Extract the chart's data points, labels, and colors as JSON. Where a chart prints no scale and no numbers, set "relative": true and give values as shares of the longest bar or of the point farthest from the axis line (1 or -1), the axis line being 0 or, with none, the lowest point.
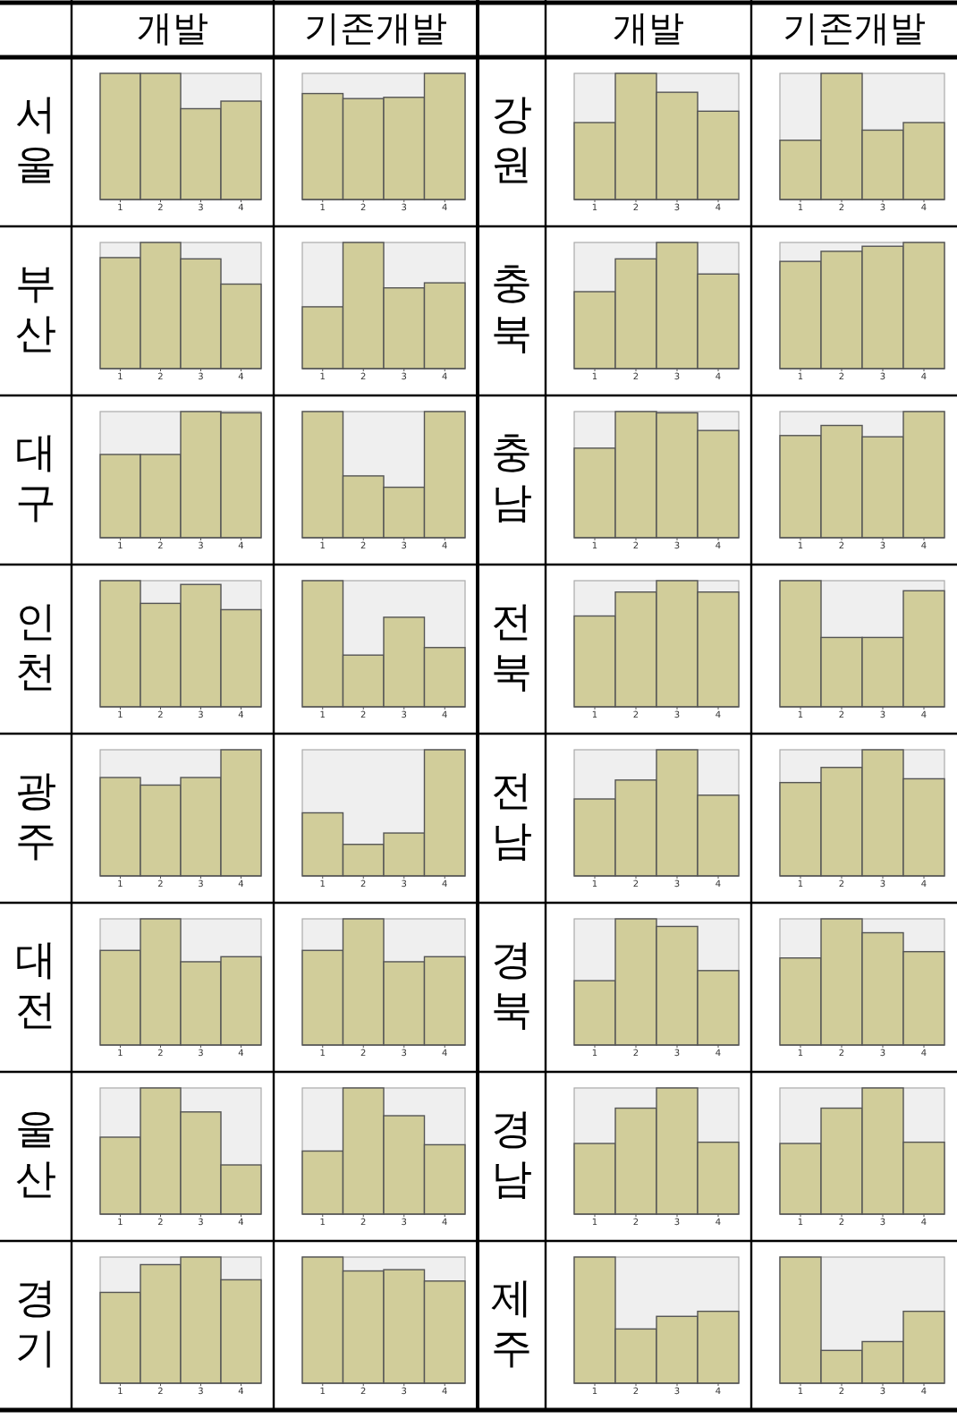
{
  "chart_data": [
    {
      "type": "other",
      "annotations": [
        "개발",
        "기존개발",
        "개발",
        "기존개발",
        "서울",
        "강원",
        "부산",
        "충북",
        "대구",
        "충남",
        "인천",
        "전북",
        "광주",
        "전남",
        "대전",
        "경북",
        "울산",
        "경남",
        "경기",
        "제주"
      ]
    },
    {
      "type": "bar",
      "relative": true,
      "categories": [
        "1",
        "2",
        "3",
        "4"
      ],
      "values": [
        1,
        1,
        0.72,
        0.78
      ],
      "color": "#d1cd9a"
    },
    {
      "type": "bar",
      "relative": true,
      "categories": [
        "1",
        "2",
        "3",
        "4"
      ],
      "values": [
        0.84,
        0.8,
        0.81,
        1
      ],
      "color": "#d1cd9a"
    },
    {
      "type": "bar",
      "relative": true,
      "categories": [
        "1",
        "2",
        "3",
        "4"
      ],
      "values": [
        0.61,
        1,
        0.85,
        0.7
      ],
      "color": "#d1cd9a"
    },
    {
      "type": "bar",
      "relative": true,
      "categories": [
        "1",
        "2",
        "3",
        "4"
      ],
      "values": [
        0.47,
        1,
        0.55,
        0.61
      ],
      "color": "#d1cd9a"
    },
    {
      "type": "bar",
      "relative": true,
      "categories": [
        "1",
        "2",
        "3",
        "4"
      ],
      "values": [
        0.88,
        1,
        0.87,
        0.67
      ],
      "color": "#d1cd9a"
    },
    {
      "type": "bar",
      "relative": true,
      "categories": [
        "1",
        "2",
        "3",
        "4"
      ],
      "values": [
        0.49,
        1,
        0.64,
        0.68
      ],
      "color": "#d1cd9a"
    },
    {
      "type": "bar",
      "relative": true,
      "categories": [
        "1",
        "2",
        "3",
        "4"
      ],
      "values": [
        0.61,
        0.87,
        1,
        0.75
      ],
      "color": "#d1cd9a"
    },
    {
      "type": "bar",
      "relative": true,
      "categories": [
        "1",
        "2",
        "3",
        "4"
      ],
      "values": [
        0.85,
        0.93,
        0.97,
        1
      ],
      "color": "#d1cd9a"
    },
    {
      "type": "bar",
      "relative": true,
      "categories": [
        "1",
        "2",
        "3",
        "4"
      ],
      "values": [
        0.66,
        0.66,
        1,
        0.99
      ],
      "color": "#d1cd9a"
    },
    {
      "type": "bar",
      "relative": true,
      "categories": [
        "1",
        "2",
        "3",
        "4"
      ],
      "values": [
        1,
        0.49,
        0.4,
        1
      ],
      "color": "#d1cd9a"
    },
    {
      "type": "bar",
      "relative": true,
      "categories": [
        "1",
        "2",
        "3",
        "4"
      ],
      "values": [
        0.71,
        1,
        0.99,
        0.85
      ],
      "color": "#d1cd9a"
    },
    {
      "type": "bar",
      "relative": true,
      "categories": [
        "1",
        "2",
        "3",
        "4"
      ],
      "values": [
        0.81,
        0.89,
        0.8,
        1
      ],
      "color": "#d1cd9a"
    },
    {
      "type": "bar",
      "relative": true,
      "categories": [
        "1",
        "2",
        "3",
        "4"
      ],
      "values": [
        1,
        0.82,
        0.97,
        0.77
      ],
      "color": "#d1cd9a"
    },
    {
      "type": "bar",
      "relative": true,
      "categories": [
        "1",
        "2",
        "3",
        "4"
      ],
      "values": [
        1,
        0.41,
        0.71,
        0.47
      ],
      "color": "#d1cd9a"
    },
    {
      "type": "bar",
      "relative": true,
      "categories": [
        "1",
        "2",
        "3",
        "4"
      ],
      "values": [
        0.72,
        0.91,
        1,
        0.91
      ],
      "color": "#d1cd9a"
    },
    {
      "type": "bar",
      "relative": true,
      "categories": [
        "1",
        "2",
        "3",
        "4"
      ],
      "values": [
        1,
        0.55,
        0.55,
        0.92
      ],
      "color": "#d1cd9a"
    },
    {
      "type": "bar",
      "relative": true,
      "categories": [
        "1",
        "2",
        "3",
        "4"
      ],
      "values": [
        0.78,
        0.72,
        0.78,
        1
      ],
      "color": "#d1cd9a"
    },
    {
      "type": "bar",
      "relative": true,
      "categories": [
        "1",
        "2",
        "3",
        "4"
      ],
      "values": [
        0.5,
        0.25,
        0.34,
        1
      ],
      "color": "#d1cd9a"
    },
    {
      "type": "bar",
      "relative": true,
      "categories": [
        "1",
        "2",
        "3",
        "4"
      ],
      "values": [
        0.61,
        0.76,
        1,
        0.64
      ],
      "color": "#d1cd9a"
    },
    {
      "type": "bar",
      "relative": true,
      "categories": [
        "1",
        "2",
        "3",
        "4"
      ],
      "values": [
        0.74,
        0.86,
        1,
        0.77
      ],
      "color": "#d1cd9a"
    },
    {
      "type": "bar",
      "relative": true,
      "categories": [
        "1",
        "2",
        "3",
        "4"
      ],
      "values": [
        0.75,
        1,
        0.66,
        0.7
      ],
      "color": "#d1cd9a"
    },
    {
      "type": "bar",
      "relative": true,
      "categories": [
        "1",
        "2",
        "3",
        "4"
      ],
      "values": [
        0.75,
        1,
        0.66,
        0.7
      ],
      "color": "#d1cd9a"
    },
    {
      "type": "bar",
      "relative": true,
      "categories": [
        "1",
        "2",
        "3",
        "4"
      ],
      "values": [
        0.51,
        1,
        0.94,
        0.59
      ],
      "color": "#d1cd9a"
    },
    {
      "type": "bar",
      "relative": true,
      "categories": [
        "1",
        "2",
        "3",
        "4"
      ],
      "values": [
        0.69,
        1,
        0.89,
        0.74
      ],
      "color": "#d1cd9a"
    },
    {
      "type": "bar",
      "relative": true,
      "categories": [
        "1",
        "2",
        "3",
        "4"
      ],
      "values": [
        0.61,
        1,
        0.81,
        0.39
      ],
      "color": "#d1cd9a"
    },
    {
      "type": "bar",
      "relative": true,
      "categories": [
        "1",
        "2",
        "3",
        "4"
      ],
      "values": [
        0.5,
        1,
        0.78,
        0.55
      ],
      "color": "#d1cd9a"
    },
    {
      "type": "bar",
      "relative": true,
      "categories": [
        "1",
        "2",
        "3",
        "4"
      ],
      "values": [
        0.56,
        0.84,
        1,
        0.57
      ],
      "color": "#d1cd9a"
    },
    {
      "type": "bar",
      "relative": true,
      "categories": [
        "1",
        "2",
        "3",
        "4"
      ],
      "values": [
        0.56,
        0.84,
        1,
        0.57
      ],
      "color": "#d1cd9a"
    },
    {
      "type": "bar",
      "relative": true,
      "categories": [
        "1",
        "2",
        "3",
        "4"
      ],
      "values": [
        0.72,
        0.94,
        1,
        0.82
      ],
      "color": "#d1cd9a"
    },
    {
      "type": "bar",
      "relative": true,
      "categories": [
        "1",
        "2",
        "3",
        "4"
      ],
      "values": [
        1,
        0.89,
        0.9,
        0.81
      ],
      "color": "#d1cd9a"
    },
    {
      "type": "bar",
      "relative": true,
      "categories": [
        "1",
        "2",
        "3",
        "4"
      ],
      "values": [
        1,
        0.43,
        0.53,
        0.57
      ],
      "color": "#d1cd9a"
    },
    {
      "type": "bar",
      "relative": true,
      "categories": [
        "1",
        "2",
        "3",
        "4"
      ],
      "values": [
        1,
        0.26,
        0.33,
        0.57
      ],
      "color": "#d1cd9a"
    }
  ]
}
